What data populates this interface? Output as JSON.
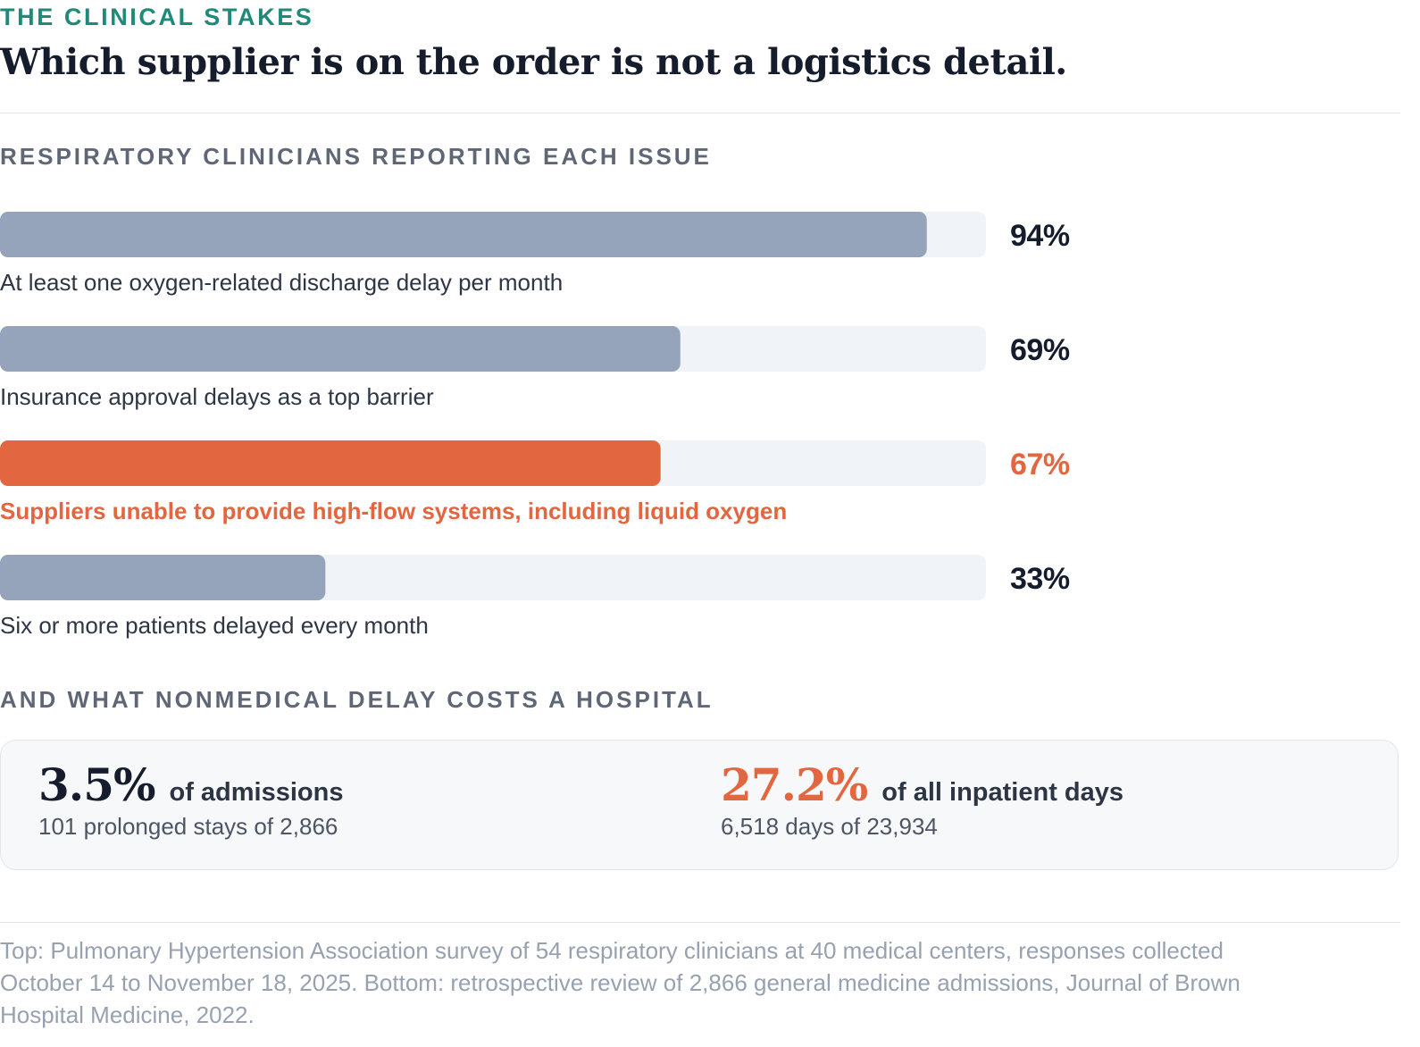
{
  "eyebrow": "THE CLINICAL STAKES",
  "headline": "Which supplier is on the order is not a logistics detail.",
  "colors": {
    "accent": "#1f8a7a",
    "bar_default": "#95a4ba",
    "bar_highlight": "#e2663f",
    "track": "#f0f3f7",
    "value_default": "#151c2c",
    "label_default": "#2e3644"
  },
  "chart_data": {
    "type": "bar",
    "orientation": "horizontal",
    "title": "RESPIRATORY CLINICIANS REPORTING EACH ISSUE",
    "xlim": [
      0,
      100
    ],
    "unit": "%",
    "grid": false,
    "categories": [
      "At least one oxygen-related discharge delay per month",
      "Insurance approval delays as a top barrier",
      "Suppliers unable to provide high-flow systems, including liquid oxygen",
      "Six or more patients delayed every month"
    ],
    "values": [
      94,
      69,
      67,
      33
    ],
    "value_labels": [
      "94%",
      "69%",
      "67%",
      "33%"
    ],
    "highlight_index": 2
  },
  "costs": {
    "title": "AND WHAT NONMEDICAL DELAY COSTS A HOSPITAL",
    "left": {
      "value": "3.5%",
      "unit": "of admissions",
      "detail": "101 prolonged stays of 2,866"
    },
    "right": {
      "value": "27.2%",
      "unit": "of all inpatient days",
      "detail": "6,518 days of 23,934"
    }
  },
  "footnote": "Top: Pulmonary Hypertension Association survey of 54 respiratory clinicians at 40 medical centers, responses collected October 14 to November 18, 2025. Bottom: retrospective review of 2,866 general medicine admissions, Journal of Brown Hospital Medicine, 2022."
}
